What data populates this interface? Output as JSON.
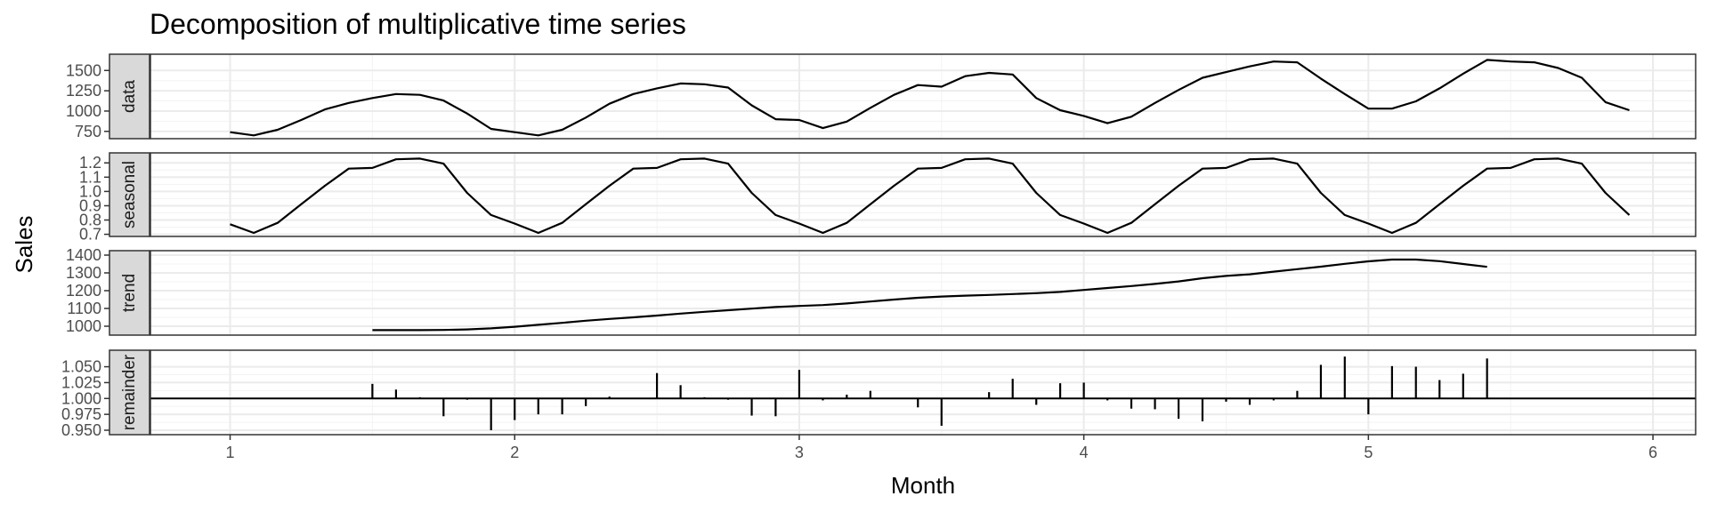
{
  "chart_data": {
    "type": "line",
    "title": "Decomposition of multiplicative time series",
    "xlabel": "Month",
    "ylabel": "Sales",
    "xlim": [
      0.72,
      6.15
    ],
    "x_ticks": [
      1,
      2,
      3,
      4,
      5,
      6
    ],
    "x_tick_labels": [
      "1",
      "2",
      "3",
      "4",
      "5",
      "6"
    ],
    "grid": true,
    "colors": {
      "line": "#000000",
      "panel_border": "#333333",
      "grid_major": "#ebebeb",
      "strip_fill": "#d9d9d9",
      "background": "#ffffff"
    },
    "panels": [
      {
        "name": "data",
        "kind": "line",
        "ylim": [
          660,
          1700
        ],
        "y_ticks": [
          750,
          1000,
          1250,
          1500
        ],
        "y_tick_labels": [
          "750",
          "1000",
          "1250",
          "1500"
        ],
        "x": [
          1.0,
          1.083,
          1.167,
          1.25,
          1.333,
          1.417,
          1.5,
          1.583,
          1.667,
          1.75,
          1.833,
          1.917,
          2.0,
          2.083,
          2.167,
          2.25,
          2.333,
          2.417,
          2.5,
          2.583,
          2.667,
          2.75,
          2.833,
          2.917,
          3.0,
          3.083,
          3.167,
          3.25,
          3.333,
          3.417,
          3.5,
          3.583,
          3.667,
          3.75,
          3.833,
          3.917,
          4.0,
          4.083,
          4.167,
          4.25,
          4.333,
          4.417,
          4.5,
          4.583,
          4.667,
          4.75,
          4.833,
          4.917,
          5.0,
          5.083,
          5.167,
          5.25,
          5.333,
          5.417,
          5.5,
          5.583,
          5.667,
          5.75,
          5.833,
          5.917
        ],
        "values": [
          740,
          700,
          770,
          890,
          1020,
          1100,
          1160,
          1210,
          1200,
          1130,
          970,
          780,
          740,
          700,
          770,
          920,
          1090,
          1210,
          1280,
          1340,
          1330,
          1290,
          1070,
          900,
          890,
          790,
          870,
          1040,
          1200,
          1320,
          1300,
          1430,
          1470,
          1450,
          1160,
          1010,
          940,
          850,
          930,
          1100,
          1260,
          1410,
          1480,
          1550,
          1610,
          1600,
          1400,
          1210,
          1030,
          1030,
          1120,
          1280,
          1460,
          1630,
          1610,
          1600,
          1530,
          1410,
          1110,
          1010
        ]
      },
      {
        "name": "seasonal",
        "kind": "line",
        "ylim": [
          0.685,
          1.27
        ],
        "y_ticks": [
          0.7,
          0.8,
          0.9,
          1.0,
          1.1,
          1.2
        ],
        "y_tick_labels": [
          "0.7",
          "0.8",
          "0.9",
          "1.0",
          "1.1",
          "1.2"
        ],
        "x": [
          1.0,
          1.083,
          1.167,
          1.25,
          1.333,
          1.417,
          1.5,
          1.583,
          1.667,
          1.75,
          1.833,
          1.917,
          2.0,
          2.083,
          2.167,
          2.25,
          2.333,
          2.417,
          2.5,
          2.583,
          2.667,
          2.75,
          2.833,
          2.917,
          3.0,
          3.083,
          3.167,
          3.25,
          3.333,
          3.417,
          3.5,
          3.583,
          3.667,
          3.75,
          3.833,
          3.917,
          4.0,
          4.083,
          4.167,
          4.25,
          4.333,
          4.417,
          4.5,
          4.583,
          4.667,
          4.75,
          4.833,
          4.917,
          5.0,
          5.083,
          5.167,
          5.25,
          5.333,
          5.417,
          5.5,
          5.583,
          5.667,
          5.75,
          5.833,
          5.917
        ],
        "values": [
          0.77,
          0.71,
          0.78,
          0.91,
          1.04,
          1.16,
          1.165,
          1.225,
          1.23,
          1.195,
          0.99,
          0.835,
          0.775,
          0.71,
          0.78,
          0.91,
          1.04,
          1.16,
          1.165,
          1.225,
          1.23,
          1.195,
          0.99,
          0.835,
          0.775,
          0.71,
          0.78,
          0.91,
          1.04,
          1.16,
          1.165,
          1.225,
          1.23,
          1.195,
          0.99,
          0.835,
          0.775,
          0.71,
          0.78,
          0.91,
          1.04,
          1.16,
          1.165,
          1.225,
          1.23,
          1.195,
          0.99,
          0.835,
          0.775,
          0.71,
          0.78,
          0.91,
          1.04,
          1.16,
          1.165,
          1.225,
          1.23,
          1.195,
          0.99,
          0.835
        ]
      },
      {
        "name": "trend",
        "kind": "line",
        "ylim": [
          950,
          1425
        ],
        "y_ticks": [
          1000,
          1100,
          1200,
          1300,
          1400
        ],
        "y_tick_labels": [
          "1000",
          "1100",
          "1200",
          "1300",
          "1400"
        ],
        "x": [
          1.5,
          1.583,
          1.667,
          1.75,
          1.833,
          1.917,
          2.0,
          2.083,
          2.167,
          2.25,
          2.333,
          2.417,
          2.5,
          2.583,
          2.667,
          2.75,
          2.833,
          2.917,
          3.0,
          3.083,
          3.167,
          3.25,
          3.333,
          3.417,
          3.5,
          3.583,
          3.667,
          3.75,
          3.833,
          3.917,
          4.0,
          4.083,
          4.167,
          4.25,
          4.333,
          4.417,
          4.5,
          4.583,
          4.667,
          4.75,
          4.833,
          4.917,
          5.0,
          5.083,
          5.167,
          5.25,
          5.333,
          5.417
        ],
        "values": [
          978,
          978,
          978,
          979,
          982,
          988,
          997,
          1008,
          1019,
          1031,
          1041,
          1050,
          1060,
          1071,
          1081,
          1090,
          1099,
          1108,
          1114,
          1119,
          1128,
          1139,
          1150,
          1160,
          1167,
          1172,
          1176,
          1181,
          1186,
          1193,
          1204,
          1215,
          1226,
          1238,
          1252,
          1270,
          1283,
          1292,
          1307,
          1321,
          1335,
          1351,
          1365,
          1375,
          1375,
          1366,
          1350,
          1334
        ]
      },
      {
        "name": "remainder",
        "kind": "bar",
        "baseline": 1.0,
        "ylim": [
          0.943,
          1.076
        ],
        "y_ticks": [
          0.95,
          0.975,
          1.0,
          1.025,
          1.05
        ],
        "y_tick_labels": [
          "0.950",
          "0.975",
          "1.000",
          "1.025",
          "1.050"
        ],
        "x": [
          1.5,
          1.583,
          1.667,
          1.75,
          1.833,
          1.917,
          2.0,
          2.083,
          2.167,
          2.25,
          2.333,
          2.417,
          2.5,
          2.583,
          2.667,
          2.75,
          2.833,
          2.917,
          3.0,
          3.083,
          3.167,
          3.25,
          3.333,
          3.417,
          3.5,
          3.583,
          3.667,
          3.75,
          3.833,
          3.917,
          4.0,
          4.083,
          4.167,
          4.25,
          4.333,
          4.417,
          4.5,
          4.583,
          4.667,
          4.75,
          4.833,
          4.917,
          5.0,
          5.083,
          5.167,
          5.25,
          5.333,
          5.417
        ],
        "values": [
          1.023,
          1.014,
          1.002,
          0.972,
          0.998,
          0.95,
          0.966,
          0.975,
          0.975,
          0.988,
          1.003,
          1.001,
          1.04,
          1.021,
          1.002,
          0.998,
          0.973,
          0.972,
          1.045,
          0.997,
          1.006,
          1.012,
          1.0,
          0.986,
          0.957,
          1.0,
          1.01,
          1.031,
          0.99,
          1.024,
          1.025,
          0.997,
          0.984,
          0.983,
          0.968,
          0.964,
          0.995,
          0.99,
          0.997,
          1.012,
          1.053,
          1.066,
          0.975,
          1.051,
          1.05,
          1.029,
          1.039,
          1.063
        ]
      }
    ]
  }
}
